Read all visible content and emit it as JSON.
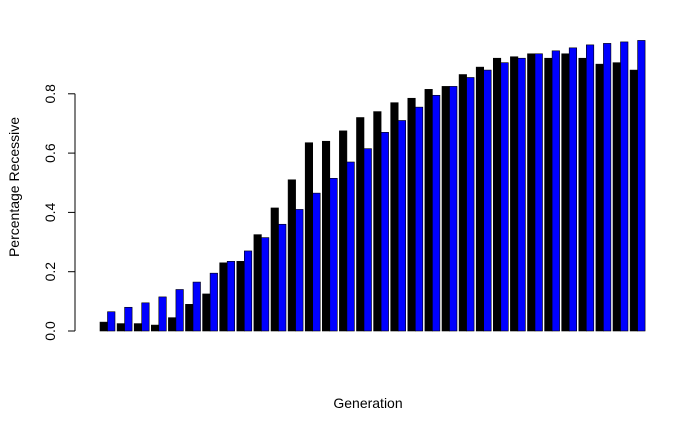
{
  "chart_data": {
    "type": "bar",
    "title": "",
    "xlabel": "Generation",
    "ylabel": "Percentage Recessive",
    "ylim": [
      0,
      0.98
    ],
    "yticks": [
      "0.0",
      "0.2",
      "0.4",
      "0.6",
      "0.8"
    ],
    "ytick_values": [
      0,
      0.2,
      0.4,
      0.6,
      0.8
    ],
    "grid": false,
    "legend": "none",
    "series": [
      {
        "color": "#000000",
        "values": [
          0.03,
          0.025,
          0.025,
          0.02,
          0.045,
          0.09,
          0.125,
          0.23,
          0.235,
          0.325,
          0.415,
          0.51,
          0.635,
          0.64,
          0.675,
          0.72,
          0.74,
          0.77,
          0.785,
          0.815,
          0.825,
          0.865,
          0.89,
          0.92,
          0.925,
          0.935,
          0.92,
          0.935,
          0.92,
          0.9,
          0.905,
          0.88
        ]
      },
      {
        "color": "#0000ff",
        "values": [
          0.065,
          0.08,
          0.095,
          0.115,
          0.14,
          0.165,
          0.195,
          0.235,
          0.27,
          0.315,
          0.36,
          0.41,
          0.465,
          0.515,
          0.57,
          0.615,
          0.67,
          0.71,
          0.755,
          0.795,
          0.825,
          0.855,
          0.88,
          0.905,
          0.92,
          0.935,
          0.945,
          0.955,
          0.965,
          0.97,
          0.975,
          0.98
        ]
      }
    ]
  }
}
